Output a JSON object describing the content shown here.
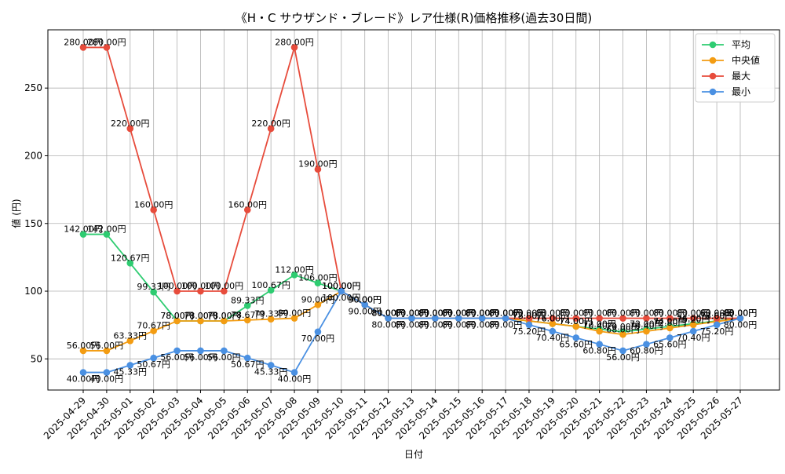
{
  "chart_data": {
    "type": "line",
    "title": "《H・C サウザンド・ブレード》レア仕様(R)価格推移(過去30日間)",
    "xlabel": "日付",
    "ylabel": "値 (円)",
    "ylim": [
      27,
      293
    ],
    "y_ticks": [
      50,
      100,
      150,
      200,
      250
    ],
    "grid": true,
    "legend_position": "top-right",
    "label_suffix": "円",
    "categories": [
      "2025-04-29",
      "2025-04-30",
      "2025-05-01",
      "2025-05-02",
      "2025-05-03",
      "2025-05-04",
      "2025-05-05",
      "2025-05-06",
      "2025-05-07",
      "2025-05-08",
      "2025-05-09",
      "2025-05-10",
      "2025-05-11",
      "2025-05-12",
      "2025-05-13",
      "2025-05-14",
      "2025-05-15",
      "2025-05-16",
      "2025-05-17",
      "2025-05-18",
      "2025-05-19",
      "2025-05-20",
      "2025-05-21",
      "2025-05-22",
      "2025-05-23",
      "2025-05-24",
      "2025-05-25",
      "2025-05-26",
      "2025-05-27"
    ],
    "series": [
      {
        "name": "平均",
        "color": "#2ecc71",
        "labels": "above",
        "values": [
          142.0,
          142.0,
          120.67,
          99.33,
          78.0,
          78.0,
          78.0,
          89.33,
          100.67,
          112.0,
          106.0,
          100.0,
          90.0,
          80.0,
          80.0,
          80.0,
          80.0,
          80.0,
          80.0,
          78.0,
          76.0,
          74.0,
          72.0,
          70.0,
          72.0,
          74.0,
          76.0,
          78.0,
          80.0
        ]
      },
      {
        "name": "中央値",
        "color": "#f39c12",
        "labels": "above",
        "values": [
          56.0,
          56.0,
          63.33,
          70.67,
          78.0,
          78.0,
          78.0,
          78.67,
          79.33,
          80.0,
          90.0,
          100.0,
          90.0,
          80.0,
          80.0,
          80.0,
          80.0,
          80.0,
          80.0,
          78.0,
          76.0,
          74.0,
          70.4,
          68.0,
          70.4,
          72.8,
          75.2,
          77.6,
          80.0
        ]
      },
      {
        "name": "最大",
        "color": "#e74c3c",
        "labels": "above",
        "values": [
          280.0,
          280.0,
          220.0,
          160.0,
          100.0,
          100.0,
          100.0,
          160.0,
          220.0,
          280.0,
          190.0,
          100.0,
          90.0,
          80.0,
          80.0,
          80.0,
          80.0,
          80.0,
          80.0,
          80.0,
          80.0,
          80.0,
          80.0,
          80.0,
          80.0,
          80.0,
          80.0,
          80.0,
          80.0
        ]
      },
      {
        "name": "最小",
        "color": "#4a90e2",
        "labels": "below",
        "values": [
          40.0,
          40.0,
          45.33,
          50.67,
          56.0,
          56.0,
          56.0,
          50.67,
          45.33,
          40.0,
          70.0,
          100.0,
          90.0,
          80.0,
          80.0,
          80.0,
          80.0,
          80.0,
          80.0,
          75.2,
          70.4,
          65.6,
          60.8,
          56.0,
          60.8,
          65.6,
          70.4,
          75.2,
          80.0
        ]
      }
    ]
  }
}
